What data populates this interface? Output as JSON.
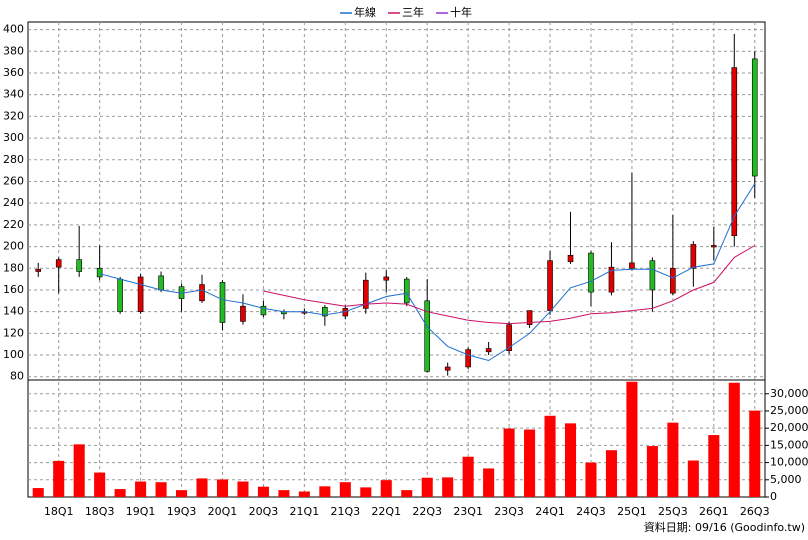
{
  "chart_data": {
    "type": "candlestick",
    "categories": [
      null,
      "18Q1",
      null,
      "18Q3",
      null,
      "19Q1",
      null,
      "19Q3",
      null,
      "20Q1",
      null,
      "20Q3",
      null,
      "21Q1",
      null,
      "21Q3",
      null,
      "22Q1",
      null,
      "22Q3",
      null,
      "23Q1",
      null,
      "23Q3",
      null,
      "24Q1",
      null,
      "24Q3",
      null,
      "25Q1",
      null,
      "25Q3",
      null,
      "26Q1",
      null,
      "26Q3"
    ],
    "open": [
      177,
      181,
      188,
      180,
      170,
      140,
      173,
      163,
      150,
      167,
      131,
      145,
      140,
      140,
      144,
      136,
      143,
      169,
      170,
      150,
      86,
      89,
      103,
      104,
      128,
      141,
      186,
      194,
      158,
      180,
      187,
      157,
      180,
      200,
      210,
      373
    ],
    "high": [
      185,
      190,
      219,
      201,
      172,
      175,
      177,
      166,
      174,
      169,
      156,
      150,
      142,
      143,
      146,
      146,
      176,
      178,
      172,
      170,
      93,
      107,
      112,
      131,
      141,
      196,
      232,
      196,
      204,
      268,
      190,
      229,
      205,
      218,
      396,
      380
    ],
    "low": [
      172,
      157,
      172,
      169,
      138,
      138,
      158,
      140,
      148,
      123,
      128,
      135,
      133,
      137,
      127,
      133,
      138,
      158,
      145,
      84,
      81,
      87,
      100,
      101,
      125,
      137,
      184,
      145,
      155,
      178,
      140,
      155,
      163,
      187,
      200,
      245
    ],
    "close": [
      179,
      188,
      177,
      172,
      140,
      172,
      160,
      152,
      165,
      130,
      145,
      137,
      138,
      140,
      136,
      143,
      169,
      172,
      148,
      85,
      89,
      105,
      106,
      128,
      141,
      187,
      192,
      158,
      181,
      185,
      160,
      180,
      202,
      201,
      365,
      265
    ],
    "up_color": "#e00000",
    "down_color": "#22bb22",
    "ylim": [
      77,
      407
    ],
    "yticks": [
      80,
      100,
      120,
      140,
      160,
      180,
      200,
      220,
      240,
      260,
      280,
      300,
      320,
      340,
      360,
      380,
      400
    ],
    "grid": true,
    "lines": [
      {
        "name": "年線",
        "color": "#1f6fd0",
        "values": [
          null,
          null,
          null,
          175,
          170,
          165,
          160,
          157,
          160,
          151,
          148,
          143,
          140,
          140,
          137,
          140,
          147,
          154,
          157,
          126,
          108,
          100,
          95,
          107,
          120,
          140,
          162,
          168,
          178,
          179,
          179,
          171,
          181,
          184,
          228,
          258
        ]
      },
      {
        "name": "三年",
        "color": "#cc1166",
        "values": [
          null,
          null,
          null,
          null,
          null,
          null,
          null,
          null,
          null,
          null,
          null,
          159,
          155,
          151,
          148,
          145,
          147,
          148,
          147,
          140,
          136,
          132,
          130,
          129,
          130,
          131,
          134,
          138,
          139,
          141,
          143,
          150,
          160,
          167,
          190,
          201
        ]
      },
      {
        "name": "十年",
        "color": "#9933cc",
        "values": [
          null,
          null,
          null,
          null,
          null,
          null,
          null,
          null,
          null,
          null,
          null,
          null,
          null,
          null,
          null,
          null,
          null,
          null,
          null,
          null,
          null,
          null,
          null,
          null,
          null,
          null,
          null,
          null,
          null,
          null,
          null,
          null,
          null,
          null,
          null,
          null
        ]
      }
    ],
    "volume": {
      "color": "#ff0000",
      "values": [
        2600,
        10500,
        15300,
        7100,
        2300,
        4500,
        4300,
        2000,
        5400,
        5100,
        4500,
        3000,
        2000,
        1600,
        3100,
        4300,
        2800,
        4900,
        2000,
        5600,
        5700,
        11700,
        8300,
        19900,
        19600,
        23600,
        21400,
        10000,
        13600,
        33500,
        14800,
        21600,
        10600,
        18000,
        33200,
        25100
      ],
      "y2lim": [
        0,
        34000
      ],
      "y2ticks": [
        0,
        {
          "value": 5000,
          "label": "5,000"
        },
        {
          "value": 10000,
          "label": "10,000"
        },
        {
          "value": 15000,
          "label": "15,000"
        },
        {
          "value": 20000,
          "label": "20,000"
        },
        {
          "value": 25000,
          "label": "25,000"
        },
        {
          "value": 30000,
          "label": "30,000"
        }
      ]
    },
    "footer": "資料日期: 09/16 (Goodinfo.tw)"
  }
}
